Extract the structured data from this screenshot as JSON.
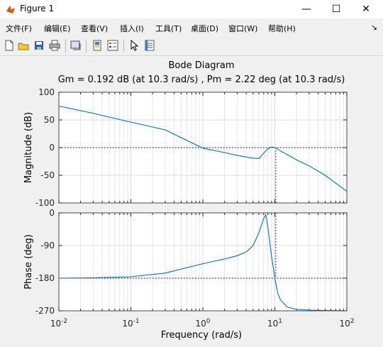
{
  "window": {
    "title": "Figure 1",
    "minimize": "—",
    "maximize": "☐",
    "close": "✕"
  },
  "menu": {
    "items": [
      "文件(F)",
      "编辑(E)",
      "查看(V)",
      "插入(I)",
      "工具(T)",
      "桌面(D)",
      "窗口(W)",
      "帮助(H)"
    ],
    "overflow_icon": "↘"
  },
  "toolbar": {
    "buttons": [
      "new-figure-icon",
      "open-file-icon",
      "save-icon",
      "print-icon",
      "link-plot-icon",
      "insert-colorbar-icon",
      "insert-legend-icon",
      "edit-plot-arrow-icon",
      "property-inspector-icon"
    ]
  },
  "colors": {
    "line": "#0072bd",
    "axes_bg": "#ffffff",
    "grid": "#e6e6e6",
    "figure_bg": "#f0f0f0"
  },
  "chart_data": {
    "type": "line",
    "title": "Bode Diagram",
    "subtitle": "Gm = 0.192 dB (at 10.3 rad/s) ,  Pm = 2.22 deg (at 10.3 rad/s)",
    "xlabel": "Frequency  (rad/s)",
    "xscale": "log",
    "xlim": [
      0.01,
      100
    ],
    "x_ticks": [
      0.01,
      0.1,
      1,
      10,
      100
    ],
    "grid": "on",
    "panels": [
      {
        "ylabel": "Magnitude (dB)",
        "ylim": [
          -100,
          100
        ],
        "y_ticks": [
          100,
          50,
          0,
          -50,
          -100
        ],
        "reference_line_y": 0,
        "marker_x": 10.3,
        "series": [
          {
            "x": [
              0.01,
              0.03,
              0.1,
              0.3,
              1,
              2,
              3,
              4,
              5,
              6,
              7,
              8,
              9,
              10,
              11,
              12,
              15,
              20,
              30,
              50,
              100
            ],
            "y": [
              75,
              62,
              46,
              32,
              -1,
              -9,
              -14,
              -17,
              -19,
              -20,
              -10,
              -2,
              1,
              0,
              -3,
              -6,
              -13,
              -22,
              -33,
              -50,
              -79
            ]
          }
        ]
      },
      {
        "ylabel": "Phase (deg)",
        "ylim": [
          -270,
          0
        ],
        "y_ticks": [
          0,
          -90,
          -180,
          -270
        ],
        "reference_line_y": -180,
        "marker_x": 10.3,
        "series": [
          {
            "x": [
              0.01,
              0.03,
              0.1,
              0.3,
              1,
              2,
              3,
              4,
              5,
              6,
              7,
              7.5,
              8,
              9,
              10,
              11,
              12,
              15,
              20,
              30,
              50,
              100
            ],
            "y": [
              -180,
              -179,
              -176,
              -166,
              -140,
              -127,
              -118,
              -108,
              -90,
              -55,
              -15,
              -5,
              -40,
              -120,
              -180,
              -222,
              -240,
              -260,
              -266,
              -268,
              -269,
              -270
            ]
          }
        ]
      }
    ]
  }
}
